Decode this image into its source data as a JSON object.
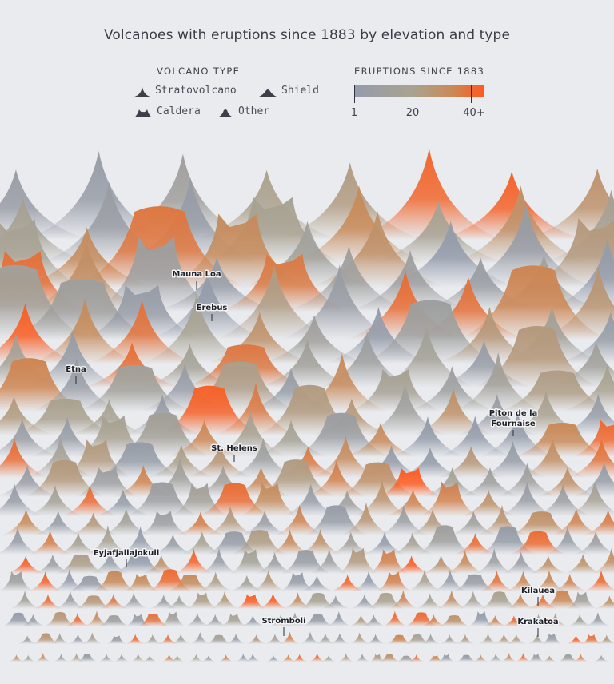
{
  "title": "Volcanoes with eruptions since 1883 by elevation and type",
  "legend_type": {
    "heading": "VOLCANO TYPE",
    "items": [
      {
        "label": "Stratovolcano",
        "shape": "strato"
      },
      {
        "label": "Shield",
        "shape": "shield"
      },
      {
        "label": "Caldera",
        "shape": "caldera"
      },
      {
        "label": "Other",
        "shape": "other"
      }
    ]
  },
  "legend_eruptions": {
    "heading": "ERUPTIONS SINCE 1883",
    "ticks": [
      "1",
      "20",
      "40+"
    ],
    "tick_values": [
      1,
      20,
      40
    ],
    "range": [
      1,
      42
    ],
    "colors": [
      "#949cab",
      "#a9a291",
      "#c98a58",
      "#ff5a1f"
    ]
  },
  "chart_data": {
    "type": "other",
    "encoding": "Each peak is one volcano; peak height encodes elevation, fill color encodes number of eruptions since 1883, silhouette encodes volcano type.",
    "annotations": [
      {
        "label": "Mauna Loa",
        "type": "shield"
      },
      {
        "label": "Erebus",
        "type": "strato"
      },
      {
        "label": "Etna",
        "type": "strato"
      },
      {
        "label": "Piton de la Fournaise",
        "type": "shield"
      },
      {
        "label": "St. Helens",
        "type": "strato"
      },
      {
        "label": "Eyjafjallajokull",
        "type": "strato"
      },
      {
        "label": "Kilauea",
        "type": "shield"
      },
      {
        "label": "Stromboli",
        "type": "strato"
      },
      {
        "label": "Krakatoa",
        "type": "caldera"
      }
    ]
  }
}
